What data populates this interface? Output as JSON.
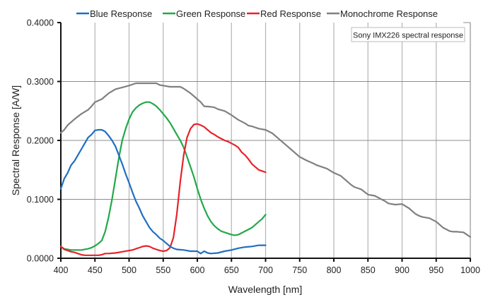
{
  "chart_data": {
    "type": "line",
    "title": "",
    "xlabel": "Wavelength [nm]",
    "ylabel": "Spectral Response [A/W]",
    "xlim": [
      400,
      1000
    ],
    "ylim": [
      0,
      0.4
    ],
    "xticks": [
      400,
      450,
      500,
      550,
      600,
      650,
      700,
      750,
      800,
      850,
      900,
      950,
      1000
    ],
    "xtick_labels": [
      "400",
      "450",
      "500",
      "550",
      "600",
      "650",
      "700",
      "750",
      "800",
      "850",
      "900",
      "950",
      "1000"
    ],
    "yticks": [
      0,
      0.1,
      0.2,
      0.3,
      0.4
    ],
    "ytick_labels": [
      "0.0000",
      "0.1000",
      "0.2000",
      "0.3000",
      "0.4000"
    ],
    "grid": true,
    "legend_position": "top",
    "annotation": "Sony IMX226 spectral response",
    "series": [
      {
        "name": "Blue Response",
        "color": "#1f6fc1",
        "x": [
          400,
          405,
          410,
          415,
          420,
          425,
          430,
          435,
          440,
          445,
          450,
          455,
          460,
          465,
          470,
          475,
          480,
          485,
          490,
          495,
          500,
          505,
          510,
          515,
          520,
          525,
          530,
          535,
          540,
          545,
          550,
          555,
          560,
          565,
          570,
          580,
          590,
          600,
          605,
          610,
          615,
          620,
          630,
          640,
          650,
          660,
          670,
          680,
          690,
          700
        ],
        "values": [
          0.118,
          0.135,
          0.145,
          0.158,
          0.165,
          0.175,
          0.185,
          0.195,
          0.205,
          0.21,
          0.217,
          0.218,
          0.218,
          0.215,
          0.208,
          0.2,
          0.19,
          0.175,
          0.16,
          0.143,
          0.128,
          0.112,
          0.097,
          0.085,
          0.072,
          0.062,
          0.052,
          0.045,
          0.04,
          0.034,
          0.03,
          0.025,
          0.02,
          0.017,
          0.015,
          0.014,
          0.012,
          0.012,
          0.008,
          0.012,
          0.009,
          0.008,
          0.009,
          0.012,
          0.014,
          0.017,
          0.019,
          0.02,
          0.022,
          0.022
        ]
      },
      {
        "name": "Green Response",
        "color": "#22a84a",
        "x": [
          400,
          405,
          410,
          415,
          420,
          430,
          440,
          445,
          450,
          455,
          460,
          465,
          470,
          475,
          480,
          485,
          490,
          495,
          500,
          505,
          510,
          515,
          520,
          525,
          530,
          535,
          540,
          545,
          550,
          555,
          560,
          565,
          570,
          575,
          580,
          585,
          590,
          595,
          600,
          605,
          610,
          615,
          620,
          625,
          630,
          635,
          640,
          645,
          650,
          655,
          660,
          665,
          670,
          675,
          680,
          685,
          690,
          695,
          700
        ],
        "values": [
          0.02,
          0.016,
          0.015,
          0.014,
          0.014,
          0.014,
          0.016,
          0.018,
          0.021,
          0.025,
          0.03,
          0.045,
          0.07,
          0.1,
          0.135,
          0.17,
          0.2,
          0.22,
          0.236,
          0.248,
          0.255,
          0.26,
          0.263,
          0.265,
          0.265,
          0.262,
          0.258,
          0.252,
          0.245,
          0.238,
          0.23,
          0.22,
          0.21,
          0.2,
          0.188,
          0.172,
          0.155,
          0.138,
          0.118,
          0.1,
          0.085,
          0.072,
          0.062,
          0.055,
          0.05,
          0.046,
          0.044,
          0.042,
          0.04,
          0.039,
          0.04,
          0.043,
          0.046,
          0.049,
          0.052,
          0.057,
          0.062,
          0.067,
          0.074
        ]
      },
      {
        "name": "Red Response",
        "color": "#e8222a",
        "x": [
          400,
          405,
          410,
          415,
          420,
          425,
          430,
          435,
          440,
          445,
          450,
          455,
          460,
          465,
          470,
          480,
          490,
          500,
          505,
          510,
          515,
          520,
          525,
          530,
          535,
          540,
          545,
          550,
          555,
          560,
          565,
          570,
          575,
          580,
          585,
          590,
          595,
          600,
          605,
          610,
          615,
          620,
          625,
          630,
          635,
          640,
          645,
          650,
          655,
          660,
          665,
          670,
          675,
          680,
          685,
          690,
          695,
          700
        ],
        "values": [
          0.02,
          0.015,
          0.013,
          0.011,
          0.01,
          0.008,
          0.006,
          0.005,
          0.005,
          0.005,
          0.005,
          0.005,
          0.006,
          0.008,
          0.008,
          0.009,
          0.011,
          0.013,
          0.014,
          0.016,
          0.018,
          0.02,
          0.021,
          0.02,
          0.017,
          0.015,
          0.013,
          0.012,
          0.013,
          0.018,
          0.035,
          0.075,
          0.13,
          0.175,
          0.205,
          0.22,
          0.227,
          0.228,
          0.226,
          0.223,
          0.218,
          0.213,
          0.21,
          0.206,
          0.203,
          0.2,
          0.198,
          0.195,
          0.192,
          0.188,
          0.18,
          0.175,
          0.168,
          0.16,
          0.155,
          0.15,
          0.148,
          0.146
        ]
      },
      {
        "name": "Monochrome Response",
        "color": "#808080",
        "x": [
          400,
          405,
          410,
          420,
          430,
          440,
          445,
          450,
          460,
          470,
          480,
          490,
          500,
          510,
          520,
          530,
          540,
          545,
          550,
          560,
          570,
          575,
          580,
          590,
          600,
          605,
          610,
          620,
          625,
          630,
          640,
          650,
          660,
          670,
          675,
          680,
          690,
          700,
          710,
          720,
          730,
          740,
          750,
          760,
          770,
          775,
          780,
          790,
          800,
          810,
          820,
          825,
          830,
          840,
          850,
          860,
          870,
          875,
          880,
          890,
          900,
          910,
          920,
          925,
          930,
          940,
          950,
          960,
          970,
          975,
          980,
          990,
          1000
        ],
        "values": [
          0.213,
          0.218,
          0.226,
          0.236,
          0.245,
          0.252,
          0.258,
          0.265,
          0.27,
          0.28,
          0.287,
          0.29,
          0.293,
          0.297,
          0.297,
          0.297,
          0.297,
          0.294,
          0.293,
          0.291,
          0.291,
          0.291,
          0.288,
          0.28,
          0.27,
          0.265,
          0.258,
          0.257,
          0.256,
          0.253,
          0.25,
          0.243,
          0.235,
          0.229,
          0.225,
          0.224,
          0.22,
          0.218,
          0.212,
          0.202,
          0.192,
          0.182,
          0.172,
          0.166,
          0.161,
          0.158,
          0.156,
          0.152,
          0.145,
          0.14,
          0.13,
          0.125,
          0.121,
          0.117,
          0.108,
          0.106,
          0.1,
          0.097,
          0.093,
          0.091,
          0.092,
          0.085,
          0.075,
          0.072,
          0.07,
          0.068,
          0.062,
          0.052,
          0.046,
          0.045,
          0.045,
          0.044,
          0.036
        ]
      }
    ]
  }
}
